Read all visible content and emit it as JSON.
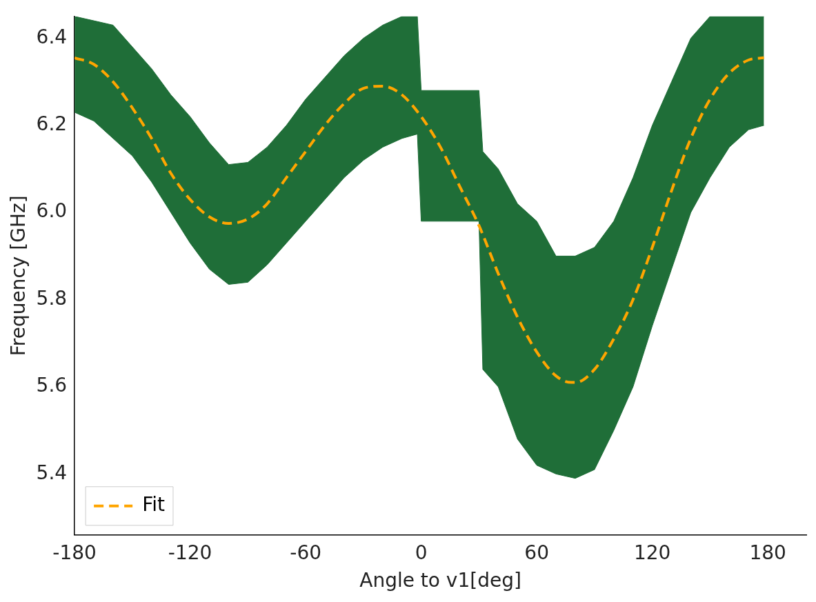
{
  "chart_data": {
    "type": "line",
    "x_label": "Angle to v1[deg]",
    "y_label": "Frequency [GHz]",
    "xlim": [
      -180,
      200
    ],
    "ylim": [
      5.26,
      6.45
    ],
    "xticks": [
      -180,
      -120,
      -60,
      0,
      60,
      120,
      180
    ],
    "yticks": [
      5.4,
      5.6,
      5.8,
      {
        "value": 6,
        "label": "6.0"
      },
      6.2,
      6.4
    ],
    "grid": false,
    "legend": "lower left",
    "series": [
      {
        "name": "Fit",
        "color": "#ffa500",
        "line_style": "dashed",
        "x": [
          -180,
          -170,
          -160,
          -150,
          -140,
          -130,
          -120,
          -110,
          -100,
          -90,
          -80,
          -70,
          -60,
          -50,
          -40,
          -30,
          -20,
          -10,
          0,
          10,
          20,
          30,
          40,
          50,
          60,
          70,
          78,
          80,
          90,
          100,
          110,
          120,
          130,
          140,
          150,
          160,
          170,
          178
        ],
        "values": [
          6.355,
          6.34,
          6.3,
          6.24,
          6.17,
          6.09,
          6.03,
          5.99,
          5.975,
          5.985,
          6.02,
          6.08,
          6.14,
          6.2,
          6.25,
          6.285,
          6.29,
          6.27,
          6.22,
          6.15,
          6.06,
          5.97,
          5.86,
          5.76,
          5.68,
          5.625,
          5.61,
          5.61,
          5.64,
          5.71,
          5.8,
          5.92,
          6.05,
          6.17,
          6.26,
          6.32,
          6.35,
          6.355
        ]
      }
    ],
    "scan_range": {
      "color": "#1f6e38",
      "x": [
        -180,
        -170,
        -160,
        -150,
        -140,
        -130,
        -120,
        -110,
        -100,
        -90,
        -80,
        -70,
        -60,
        -50,
        -40,
        -30,
        -20,
        -10,
        -2,
        0,
        30,
        32,
        40,
        50,
        60,
        70,
        80,
        90,
        100,
        110,
        120,
        130,
        140,
        150,
        160,
        170,
        178
      ],
      "low": [
        6.23,
        6.21,
        6.17,
        6.13,
        6.07,
        6.0,
        5.93,
        5.87,
        5.835,
        5.84,
        5.88,
        5.93,
        5.98,
        6.03,
        6.08,
        6.12,
        6.15,
        6.17,
        6.18,
        5.98,
        5.98,
        5.64,
        5.6,
        5.48,
        5.42,
        5.4,
        5.39,
        5.41,
        5.5,
        5.6,
        5.74,
        5.87,
        6.0,
        6.08,
        6.15,
        6.19,
        6.2
      ],
      "high": [
        6.45,
        6.44,
        6.43,
        6.38,
        6.33,
        6.27,
        6.22,
        6.16,
        6.11,
        6.115,
        6.15,
        6.2,
        6.26,
        6.31,
        6.36,
        6.4,
        6.43,
        6.45,
        6.45,
        6.28,
        6.28,
        6.14,
        6.1,
        6.02,
        5.98,
        5.9,
        5.9,
        5.92,
        5.98,
        6.08,
        6.2,
        6.3,
        6.4,
        6.45,
        6.45,
        6.45,
        6.45
      ]
    }
  }
}
